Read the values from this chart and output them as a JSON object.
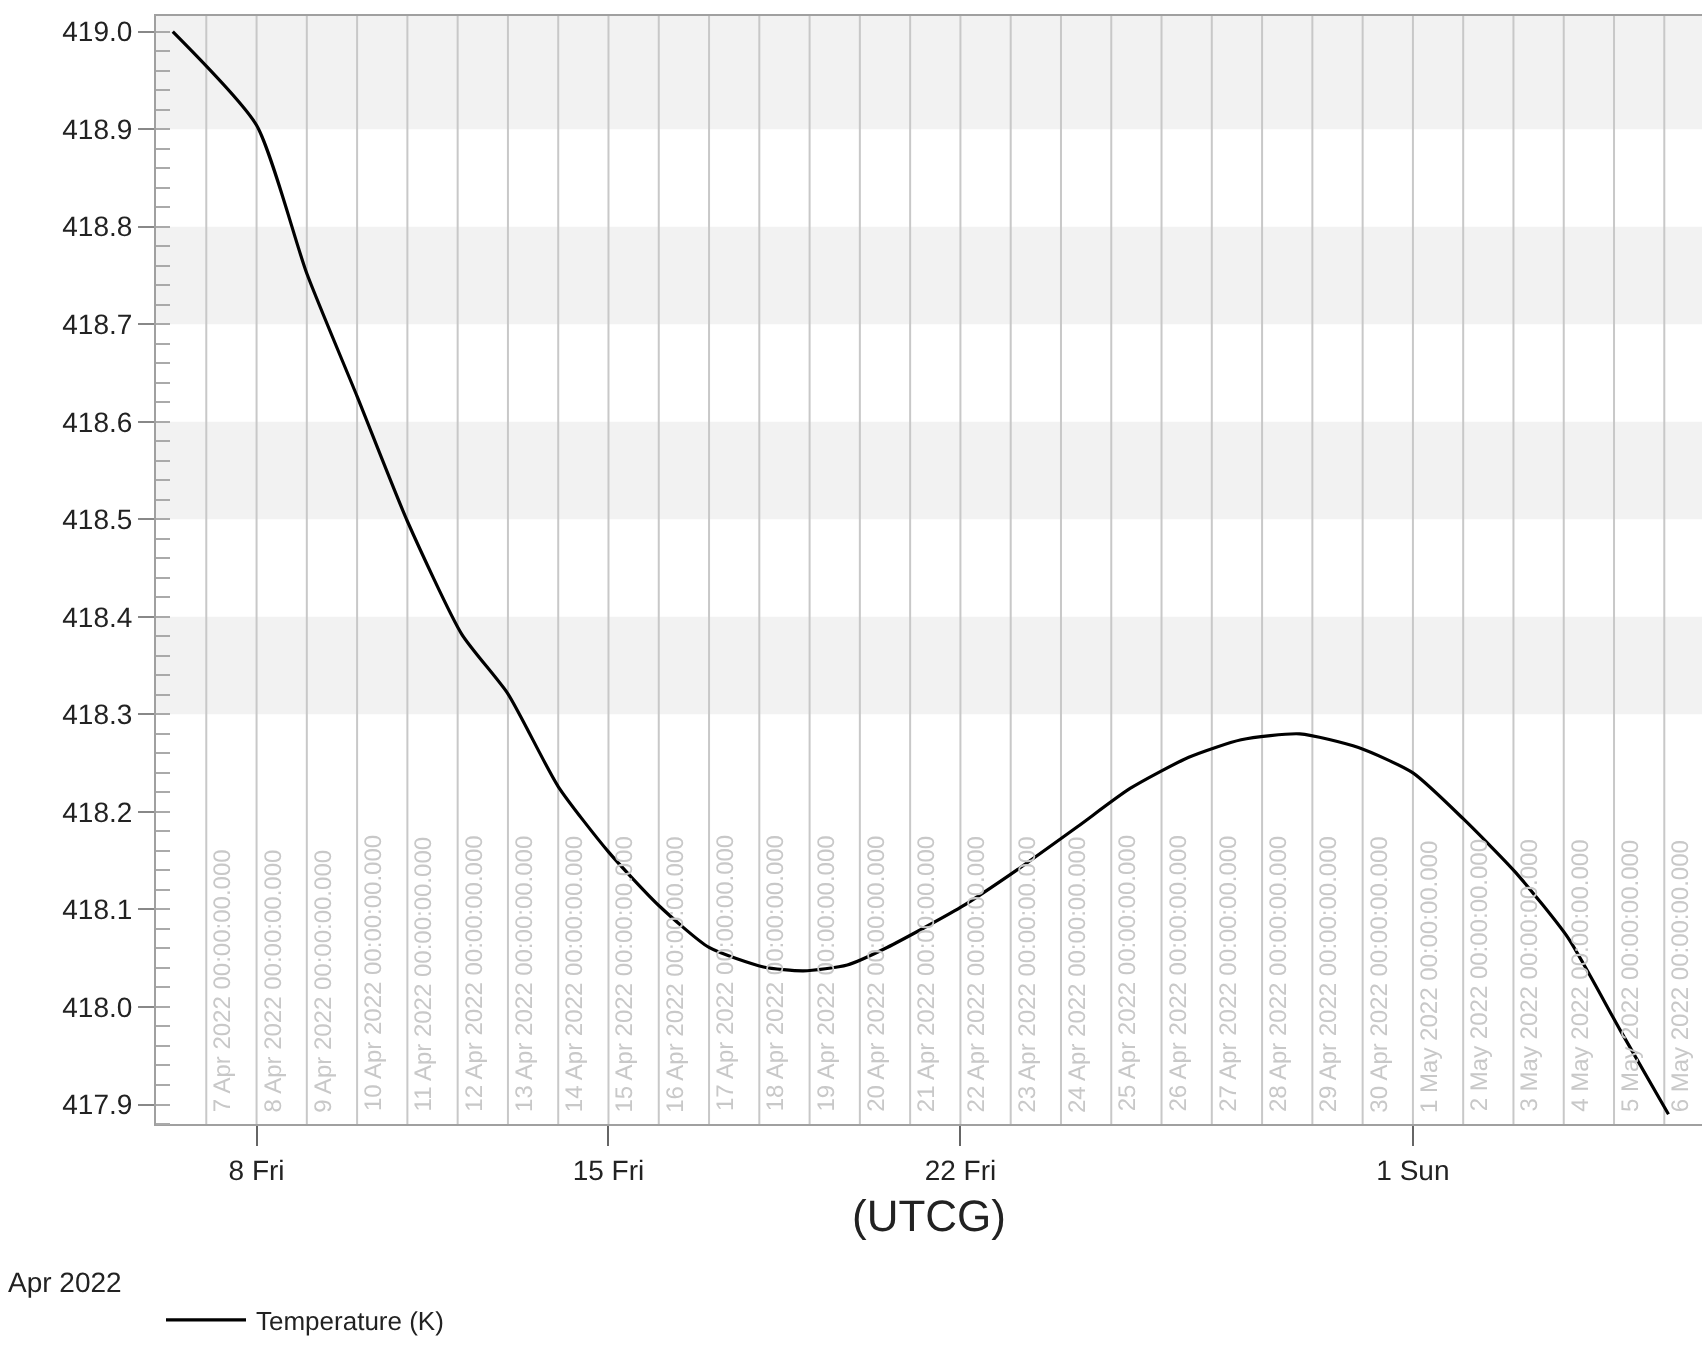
{
  "chart_data": {
    "type": "line",
    "xlabel": "(UTCG)",
    "x": [
      "2022-04-06T08:00",
      "2022-04-08",
      "2022-04-09",
      "2022-04-10",
      "2022-04-11",
      "2022-04-12T02:00",
      "2022-04-13",
      "2022-04-14",
      "2022-04-15",
      "2022-04-16",
      "2022-04-17",
      "2022-04-18T02:00",
      "2022-04-18T21:00",
      "2022-04-19T18:00",
      "2022-04-20T13:00",
      "2022-04-22",
      "2022-04-23T04:00",
      "2022-04-24T08:00",
      "2022-04-25T09:00",
      "2022-04-26T13:00",
      "2022-04-27T14:00",
      "2022-04-28T18:00",
      "2022-04-29T22:00",
      "2022-05-01",
      "2022-05-02",
      "2022-05-03T01:00",
      "2022-05-04T02:00",
      "2022-05-05T03:00",
      "2022-05-06T02:00"
    ],
    "series": [
      {
        "name": "Temperature (K)",
        "color": "#000000",
        "values": [
          419.0,
          418.904,
          418.752,
          418.626,
          418.498,
          418.382,
          418.321,
          418.226,
          418.159,
          418.104,
          418.061,
          418.041,
          418.037,
          418.043,
          418.061,
          418.102,
          418.142,
          418.185,
          418.224,
          418.256,
          418.274,
          418.28,
          418.266,
          418.24,
          418.193,
          418.138,
          418.071,
          417.976,
          417.89
        ]
      }
    ],
    "xlim": [
      "2022-04-06",
      "2022-05-06T18:00"
    ],
    "xticks": [
      {
        "value": "2022-04-08",
        "label": "8 Fri"
      },
      {
        "value": "2022-04-15",
        "label": "15 Fri"
      },
      {
        "value": "2022-04-22",
        "label": "22 Fri"
      },
      {
        "value": "2022-05-01",
        "label": "1 Sun"
      }
    ],
    "ylim": [
      417.88,
      419.016
    ],
    "yticks": [
      {
        "value": 417.9,
        "label": "417.9"
      },
      {
        "value": 418.0,
        "label": "418.0"
      },
      {
        "value": 418.1,
        "label": "418.1"
      },
      {
        "value": 418.2,
        "label": "418.2"
      },
      {
        "value": 418.3,
        "label": "418.3"
      },
      {
        "value": 418.4,
        "label": "418.4"
      },
      {
        "value": 418.5,
        "label": "418.5"
      },
      {
        "value": 418.6,
        "label": "418.6"
      },
      {
        "value": 418.7,
        "label": "418.7"
      },
      {
        "value": 418.8,
        "label": "418.8"
      },
      {
        "value": 418.9,
        "label": "418.9"
      },
      {
        "value": 419.0,
        "label": "419.0"
      }
    ],
    "annotations": [
      "Apr 2022"
    ],
    "bands": [
      {
        "axis": "y",
        "from": 418.9,
        "to": 419.016,
        "color": "#f2f2f2"
      },
      {
        "axis": "y",
        "from": 418.7,
        "to": 418.8,
        "color": "#f2f2f2"
      },
      {
        "axis": "y",
        "from": 418.5,
        "to": 418.6,
        "color": "#f2f2f2"
      },
      {
        "axis": "y",
        "from": 418.3,
        "to": 418.4,
        "color": "#f2f2f2"
      }
    ],
    "ref_lines": [
      {
        "axis": "x",
        "value": "2022-04-07",
        "label": "7 Apr 2022 00:00:00.000",
        "color": "#c8c8c8"
      },
      {
        "axis": "x",
        "value": "2022-04-08",
        "label": "8 Apr 2022 00:00:00.000",
        "color": "#c8c8c8"
      },
      {
        "axis": "x",
        "value": "2022-04-09",
        "label": "9 Apr 2022 00:00:00.000",
        "color": "#c8c8c8"
      },
      {
        "axis": "x",
        "value": "2022-04-10",
        "label": "10 Apr 2022 00:00:00.000",
        "color": "#c8c8c8"
      },
      {
        "axis": "x",
        "value": "2022-04-11",
        "label": "11 Apr 2022 00:00:00.000",
        "color": "#c8c8c8"
      },
      {
        "axis": "x",
        "value": "2022-04-12",
        "label": "12 Apr 2022 00:00:00.000",
        "color": "#c8c8c8"
      },
      {
        "axis": "x",
        "value": "2022-04-13",
        "label": "13 Apr 2022 00:00:00.000",
        "color": "#c8c8c8"
      },
      {
        "axis": "x",
        "value": "2022-04-14",
        "label": "14 Apr 2022 00:00:00.000",
        "color": "#c8c8c8"
      },
      {
        "axis": "x",
        "value": "2022-04-15",
        "label": "15 Apr 2022 00:00:00.000",
        "color": "#c8c8c8"
      },
      {
        "axis": "x",
        "value": "2022-04-16",
        "label": "16 Apr 2022 00:00:00.000",
        "color": "#c8c8c8"
      },
      {
        "axis": "x",
        "value": "2022-04-17",
        "label": "17 Apr 2022 00:00:00.000",
        "color": "#c8c8c8"
      },
      {
        "axis": "x",
        "value": "2022-04-18",
        "label": "18 Apr 2022 00:00:00.000",
        "color": "#c8c8c8"
      },
      {
        "axis": "x",
        "value": "2022-04-19",
        "label": "19 Apr 2022 00:00:00.000",
        "color": "#c8c8c8"
      },
      {
        "axis": "x",
        "value": "2022-04-20",
        "label": "20 Apr 2022 00:00:00.000",
        "color": "#c8c8c8"
      },
      {
        "axis": "x",
        "value": "2022-04-21",
        "label": "21 Apr 2022 00:00:00.000",
        "color": "#c8c8c8"
      },
      {
        "axis": "x",
        "value": "2022-04-22",
        "label": "22 Apr 2022 00:00:00.000",
        "color": "#c8c8c8"
      },
      {
        "axis": "x",
        "value": "2022-04-23",
        "label": "23 Apr 2022 00:00:00.000",
        "color": "#c8c8c8"
      },
      {
        "axis": "x",
        "value": "2022-04-24",
        "label": "24 Apr 2022 00:00:00.000",
        "color": "#c8c8c8"
      },
      {
        "axis": "x",
        "value": "2022-04-25",
        "label": "25 Apr 2022 00:00:00.000",
        "color": "#c8c8c8"
      },
      {
        "axis": "x",
        "value": "2022-04-26",
        "label": "26 Apr 2022 00:00:00.000",
        "color": "#c8c8c8"
      },
      {
        "axis": "x",
        "value": "2022-04-27",
        "label": "27 Apr 2022 00:00:00.000",
        "color": "#c8c8c8"
      },
      {
        "axis": "x",
        "value": "2022-04-28",
        "label": "28 Apr 2022 00:00:00.000",
        "color": "#c8c8c8"
      },
      {
        "axis": "x",
        "value": "2022-04-29",
        "label": "29 Apr 2022 00:00:00.000",
        "color": "#c8c8c8"
      },
      {
        "axis": "x",
        "value": "2022-04-30",
        "label": "30 Apr 2022 00:00:00.000",
        "color": "#c8c8c8"
      },
      {
        "axis": "x",
        "value": "2022-05-01",
        "label": "1 May 2022 00:00:00.000",
        "color": "#c8c8c8"
      },
      {
        "axis": "x",
        "value": "2022-05-02",
        "label": "2 May 2022 00:00:00.000",
        "color": "#c8c8c8"
      },
      {
        "axis": "x",
        "value": "2022-05-03",
        "label": "3 May 2022 00:00:00.000",
        "color": "#c8c8c8"
      },
      {
        "axis": "x",
        "value": "2022-05-04",
        "label": "4 May 2022 00:00:00.000",
        "color": "#c8c8c8"
      },
      {
        "axis": "x",
        "value": "2022-05-05",
        "label": "5 May 2022 00:00:00.000",
        "color": "#c8c8c8"
      },
      {
        "axis": "x",
        "value": "2022-05-06",
        "label": "6 May 2022 00:00:00.000",
        "color": "#c8c8c8"
      }
    ],
    "legend": "bottom left",
    "grid": false,
    "marker": "none",
    "line_style": "solid"
  }
}
